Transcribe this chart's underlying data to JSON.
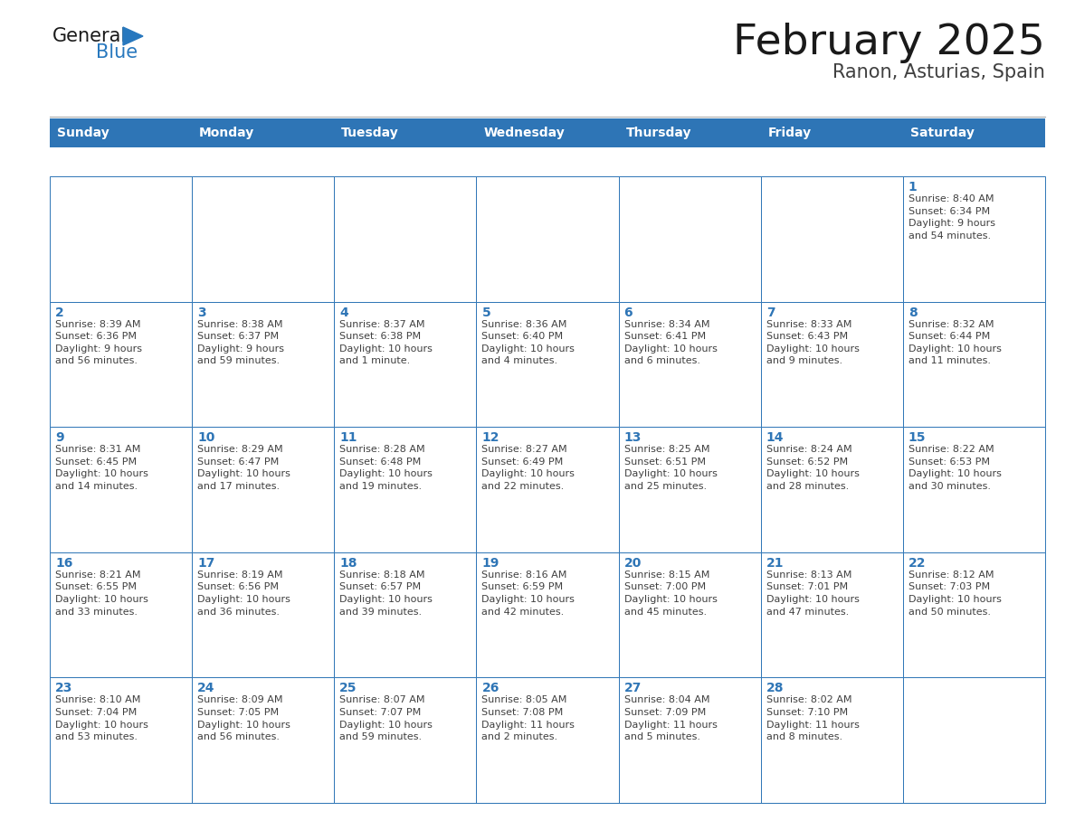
{
  "title": "February 2025",
  "subtitle": "Ranon, Asturias, Spain",
  "days_of_week": [
    "Sunday",
    "Monday",
    "Tuesday",
    "Wednesday",
    "Thursday",
    "Friday",
    "Saturday"
  ],
  "header_bg": "#2E75B6",
  "header_text": "#FFFFFF",
  "cell_bg": "#FFFFFF",
  "cell_alt_bg": "#F2F2F2",
  "border_color": "#2E75B6",
  "day_number_color": "#2E75B6",
  "cell_text_color": "#404040",
  "title_color": "#1a1a1a",
  "subtitle_color": "#404040",
  "logo_general_color": "#1a1a1a",
  "logo_blue_color": "#2878BE",
  "weeks": [
    [
      {
        "day": null,
        "info": ""
      },
      {
        "day": null,
        "info": ""
      },
      {
        "day": null,
        "info": ""
      },
      {
        "day": null,
        "info": ""
      },
      {
        "day": null,
        "info": ""
      },
      {
        "day": null,
        "info": ""
      },
      {
        "day": 1,
        "info": "Sunrise: 8:40 AM\nSunset: 6:34 PM\nDaylight: 9 hours\nand 54 minutes."
      }
    ],
    [
      {
        "day": 2,
        "info": "Sunrise: 8:39 AM\nSunset: 6:36 PM\nDaylight: 9 hours\nand 56 minutes."
      },
      {
        "day": 3,
        "info": "Sunrise: 8:38 AM\nSunset: 6:37 PM\nDaylight: 9 hours\nand 59 minutes."
      },
      {
        "day": 4,
        "info": "Sunrise: 8:37 AM\nSunset: 6:38 PM\nDaylight: 10 hours\nand 1 minute."
      },
      {
        "day": 5,
        "info": "Sunrise: 8:36 AM\nSunset: 6:40 PM\nDaylight: 10 hours\nand 4 minutes."
      },
      {
        "day": 6,
        "info": "Sunrise: 8:34 AM\nSunset: 6:41 PM\nDaylight: 10 hours\nand 6 minutes."
      },
      {
        "day": 7,
        "info": "Sunrise: 8:33 AM\nSunset: 6:43 PM\nDaylight: 10 hours\nand 9 minutes."
      },
      {
        "day": 8,
        "info": "Sunrise: 8:32 AM\nSunset: 6:44 PM\nDaylight: 10 hours\nand 11 minutes."
      }
    ],
    [
      {
        "day": 9,
        "info": "Sunrise: 8:31 AM\nSunset: 6:45 PM\nDaylight: 10 hours\nand 14 minutes."
      },
      {
        "day": 10,
        "info": "Sunrise: 8:29 AM\nSunset: 6:47 PM\nDaylight: 10 hours\nand 17 minutes."
      },
      {
        "day": 11,
        "info": "Sunrise: 8:28 AM\nSunset: 6:48 PM\nDaylight: 10 hours\nand 19 minutes."
      },
      {
        "day": 12,
        "info": "Sunrise: 8:27 AM\nSunset: 6:49 PM\nDaylight: 10 hours\nand 22 minutes."
      },
      {
        "day": 13,
        "info": "Sunrise: 8:25 AM\nSunset: 6:51 PM\nDaylight: 10 hours\nand 25 minutes."
      },
      {
        "day": 14,
        "info": "Sunrise: 8:24 AM\nSunset: 6:52 PM\nDaylight: 10 hours\nand 28 minutes."
      },
      {
        "day": 15,
        "info": "Sunrise: 8:22 AM\nSunset: 6:53 PM\nDaylight: 10 hours\nand 30 minutes."
      }
    ],
    [
      {
        "day": 16,
        "info": "Sunrise: 8:21 AM\nSunset: 6:55 PM\nDaylight: 10 hours\nand 33 minutes."
      },
      {
        "day": 17,
        "info": "Sunrise: 8:19 AM\nSunset: 6:56 PM\nDaylight: 10 hours\nand 36 minutes."
      },
      {
        "day": 18,
        "info": "Sunrise: 8:18 AM\nSunset: 6:57 PM\nDaylight: 10 hours\nand 39 minutes."
      },
      {
        "day": 19,
        "info": "Sunrise: 8:16 AM\nSunset: 6:59 PM\nDaylight: 10 hours\nand 42 minutes."
      },
      {
        "day": 20,
        "info": "Sunrise: 8:15 AM\nSunset: 7:00 PM\nDaylight: 10 hours\nand 45 minutes."
      },
      {
        "day": 21,
        "info": "Sunrise: 8:13 AM\nSunset: 7:01 PM\nDaylight: 10 hours\nand 47 minutes."
      },
      {
        "day": 22,
        "info": "Sunrise: 8:12 AM\nSunset: 7:03 PM\nDaylight: 10 hours\nand 50 minutes."
      }
    ],
    [
      {
        "day": 23,
        "info": "Sunrise: 8:10 AM\nSunset: 7:04 PM\nDaylight: 10 hours\nand 53 minutes."
      },
      {
        "day": 24,
        "info": "Sunrise: 8:09 AM\nSunset: 7:05 PM\nDaylight: 10 hours\nand 56 minutes."
      },
      {
        "day": 25,
        "info": "Sunrise: 8:07 AM\nSunset: 7:07 PM\nDaylight: 10 hours\nand 59 minutes."
      },
      {
        "day": 26,
        "info": "Sunrise: 8:05 AM\nSunset: 7:08 PM\nDaylight: 11 hours\nand 2 minutes."
      },
      {
        "day": 27,
        "info": "Sunrise: 8:04 AM\nSunset: 7:09 PM\nDaylight: 11 hours\nand 5 minutes."
      },
      {
        "day": 28,
        "info": "Sunrise: 8:02 AM\nSunset: 7:10 PM\nDaylight: 11 hours\nand 8 minutes."
      },
      {
        "day": null,
        "info": ""
      }
    ]
  ]
}
